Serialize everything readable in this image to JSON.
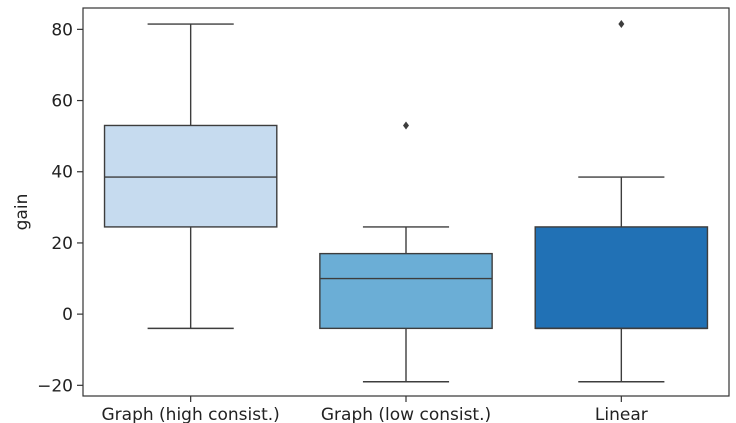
{
  "chart_data": {
    "type": "box",
    "title": "",
    "xlabel": "",
    "ylabel": "gain",
    "ylim": [
      -23,
      86
    ],
    "yticks": [
      -20,
      0,
      20,
      40,
      60,
      80
    ],
    "grid": false,
    "categories": [
      "Graph (high consist.)",
      "Graph (low consist.)",
      "Linear"
    ],
    "boxes": [
      {
        "category": "Graph (high consist.)",
        "min": -4,
        "q1": 24.5,
        "median": 38.5,
        "q3": 53,
        "max": 81.5,
        "outliers": [],
        "color": "#c6dbef"
      },
      {
        "category": "Graph (low consist.)",
        "min": -19,
        "q1": -4,
        "median": 10,
        "q3": 17,
        "max": 24.5,
        "outliers": [
          53
        ],
        "color": "#6baed6"
      },
      {
        "category": "Linear",
        "min": -19,
        "q1": -4,
        "median": -4,
        "q3": 24.5,
        "max": 38.5,
        "outliers": [
          81.5
        ],
        "color": "#2171b5"
      }
    ]
  }
}
